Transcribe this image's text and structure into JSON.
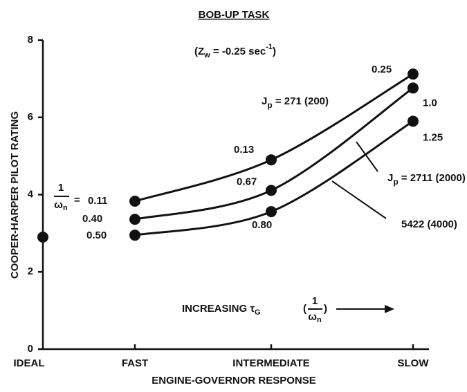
{
  "chart_data": {
    "type": "line",
    "title": "BOB-UP TASK",
    "subtitle": [
      "(Z",
      "w",
      " = -0.25 sec",
      "-1",
      ")"
    ],
    "y_label": "COOPER-HARPER PILOT RATING",
    "x_label": "ENGINE-GOVERNOR RESPONSE",
    "categories": [
      "IDEAL",
      "FAST",
      "INTERMEDIATE",
      "SLOW"
    ],
    "ylim": [
      0,
      8
    ],
    "yticks": [
      0,
      2,
      4,
      6,
      8
    ],
    "color": "#111111",
    "fraction_label": {
      "numerator": "1",
      "denominator": [
        "ω",
        "n"
      ],
      "text": "="
    },
    "annotation": {
      "text": "INCREASING τ",
      "sub": "G",
      "numerator": "1",
      "denominator": [
        "ω",
        "n"
      ]
    },
    "series": [
      {
        "name": [
          "J",
          "p",
          " = 271 (200)"
        ],
        "values": [
          null,
          3.83,
          4.9,
          7.12
        ],
        "point_labels": [
          null,
          "0.11",
          "0.13",
          "0.25"
        ]
      },
      {
        "name": [
          "J",
          "p",
          " = 2711 (2000)"
        ],
        "values": [
          null,
          3.36,
          4.11,
          6.76
        ],
        "point_labels": [
          null,
          "0.40",
          "0.67",
          "1.0"
        ]
      },
      {
        "name": [
          "5422 (4000)"
        ],
        "values": [
          null,
          2.95,
          3.56,
          5.9
        ],
        "point_labels": [
          null,
          "0.50",
          "0.80",
          "1.25"
        ]
      },
      {
        "values": [
          2.9,
          null,
          null,
          null
        ]
      }
    ]
  }
}
